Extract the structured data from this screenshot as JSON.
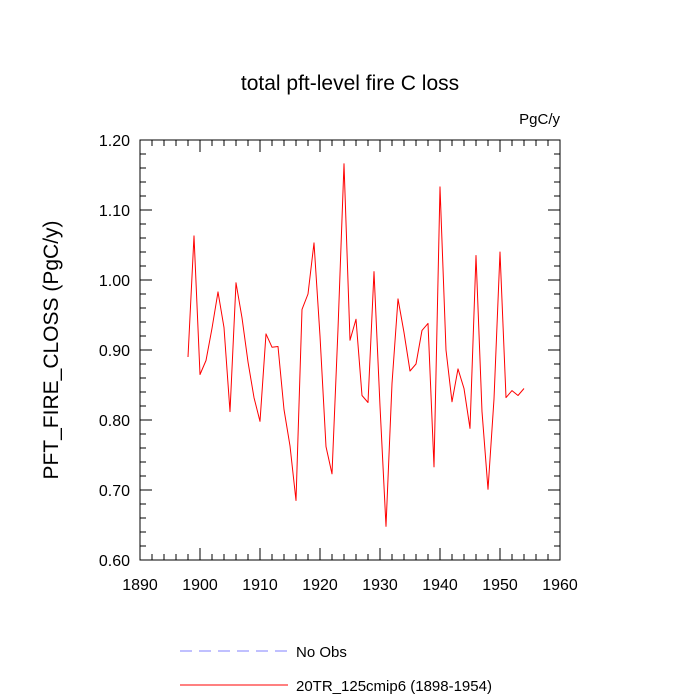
{
  "chart_data": {
    "type": "line",
    "title": "total pft-level fire C loss",
    "units_label": "PgC/y",
    "xlabel": "",
    "ylabel": "PFT_FIRE_CLOSS  (PgC/y)",
    "xlim": [
      1890,
      1960
    ],
    "ylim": [
      0.6,
      1.2
    ],
    "xticks": [
      1890,
      1900,
      1910,
      1920,
      1930,
      1940,
      1950,
      1960
    ],
    "xtick_labels": [
      "1890",
      "1900",
      "1910",
      "1920",
      "1930",
      "1940",
      "1950",
      "1960"
    ],
    "yticks": [
      0.6,
      0.7,
      0.8,
      0.9,
      1.0,
      1.1,
      1.2
    ],
    "ytick_labels": [
      "0.60",
      "0.70",
      "0.80",
      "0.90",
      "1.00",
      "1.10",
      "1.20"
    ],
    "grid": false,
    "legend_position": "bottom-center",
    "legend": [
      {
        "label": "No Obs",
        "color": "#8080ff",
        "dash": "dashed"
      },
      {
        "label": "20TR_125cmip6 (1898-1954)",
        "color": "#ff0000",
        "dash": "solid"
      }
    ],
    "series": [
      {
        "name": "20TR_125cmip6 (1898-1954)",
        "color": "#ff0000",
        "x": [
          1898,
          1899,
          1900,
          1901,
          1902,
          1903,
          1904,
          1905,
          1906,
          1907,
          1908,
          1909,
          1910,
          1911,
          1912,
          1913,
          1914,
          1915,
          1916,
          1917,
          1918,
          1919,
          1920,
          1921,
          1922,
          1923,
          1924,
          1925,
          1926,
          1927,
          1928,
          1929,
          1930,
          1931,
          1932,
          1933,
          1934,
          1935,
          1936,
          1937,
          1938,
          1939,
          1940,
          1941,
          1942,
          1943,
          1944,
          1945,
          1946,
          1947,
          1948,
          1949,
          1950,
          1951,
          1952,
          1953,
          1954
        ],
        "values": [
          0.89,
          1.063,
          0.865,
          0.885,
          0.931,
          0.983,
          0.932,
          0.812,
          0.996,
          0.946,
          0.883,
          0.832,
          0.798,
          0.923,
          0.904,
          0.905,
          0.815,
          0.763,
          0.685,
          0.958,
          0.98,
          1.053,
          0.92,
          0.762,
          0.723,
          0.93,
          1.166,
          0.914,
          0.944,
          0.835,
          0.825,
          1.012,
          0.82,
          0.648,
          0.852,
          0.973,
          0.925,
          0.87,
          0.88,
          0.928,
          0.938,
          0.733,
          1.133,
          0.9,
          0.826,
          0.873,
          0.845,
          0.788,
          1.035,
          0.812,
          0.701,
          0.83,
          1.04,
          0.832,
          0.842,
          0.835,
          0.845
        ]
      }
    ]
  }
}
